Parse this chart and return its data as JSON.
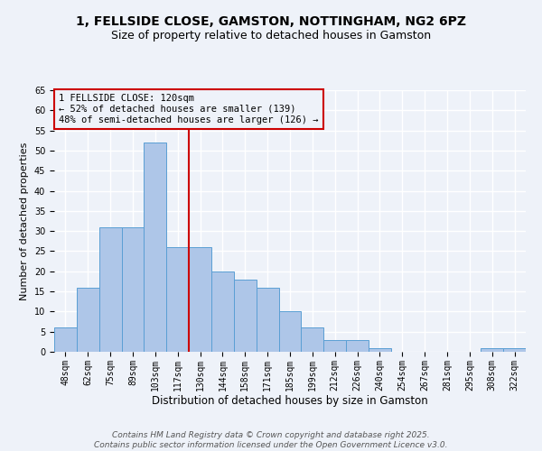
{
  "title": "1, FELLSIDE CLOSE, GAMSTON, NOTTINGHAM, NG2 6PZ",
  "subtitle": "Size of property relative to detached houses in Gamston",
  "xlabel": "Distribution of detached houses by size in Gamston",
  "ylabel": "Number of detached properties",
  "categories": [
    "48sqm",
    "62sqm",
    "75sqm",
    "89sqm",
    "103sqm",
    "117sqm",
    "130sqm",
    "144sqm",
    "158sqm",
    "171sqm",
    "185sqm",
    "199sqm",
    "212sqm",
    "226sqm",
    "240sqm",
    "254sqm",
    "267sqm",
    "281sqm",
    "295sqm",
    "308sqm",
    "322sqm"
  ],
  "values": [
    6,
    16,
    31,
    31,
    52,
    26,
    26,
    20,
    18,
    16,
    10,
    6,
    3,
    3,
    1,
    0,
    0,
    0,
    0,
    1,
    1
  ],
  "bar_color": "#aec6e8",
  "bar_edge_color": "#5a9fd4",
  "vline_color": "#cc0000",
  "vline_pos": 5.5,
  "annotation_box_text": "1 FELLSIDE CLOSE: 120sqm\n← 52% of detached houses are smaller (139)\n48% of semi-detached houses are larger (126) →",
  "annotation_box_color": "#cc0000",
  "ylim": [
    0,
    65
  ],
  "yticks": [
    0,
    5,
    10,
    15,
    20,
    25,
    30,
    35,
    40,
    45,
    50,
    55,
    60,
    65
  ],
  "background_color": "#eef2f9",
  "grid_color": "#ffffff",
  "footer": "Contains HM Land Registry data © Crown copyright and database right 2025.\nContains public sector information licensed under the Open Government Licence v3.0.",
  "title_fontsize": 10,
  "subtitle_fontsize": 9,
  "xlabel_fontsize": 8.5,
  "ylabel_fontsize": 8,
  "tick_fontsize": 7,
  "annotation_fontsize": 7.5,
  "footer_fontsize": 6.5
}
